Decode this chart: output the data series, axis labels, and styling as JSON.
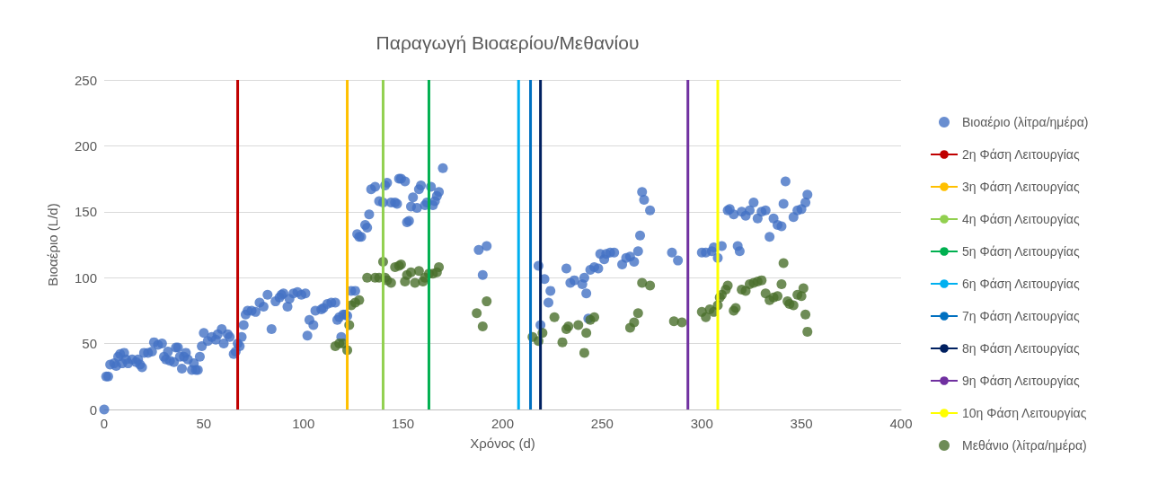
{
  "chart_data": {
    "type": "scatter",
    "title": "Παραγωγή Βιοαερίου/Μεθανίου",
    "xlabel": "Χρόνος (d)",
    "ylabel": "Βιοαέριο (L/d)",
    "xlim": [
      0,
      400
    ],
    "xticks": [
      0,
      50,
      100,
      150,
      200,
      250,
      300,
      350,
      400
    ],
    "ylim": [
      0,
      250
    ],
    "yticks": [
      0,
      50,
      100,
      150,
      200,
      250
    ],
    "grid": "y",
    "legend": "right",
    "marker": "circle",
    "series": [
      {
        "name": "Βιοαέριο (λίτρα/ημέρα)",
        "color": "#4472c4",
        "x": [
          0,
          1,
          2,
          3,
          5,
          6,
          7,
          8,
          9,
          10,
          11,
          12,
          14,
          16,
          17,
          18,
          19,
          20,
          22,
          24,
          25,
          27,
          29,
          30,
          31,
          32,
          33,
          35,
          36,
          37,
          38,
          39,
          40,
          41,
          42,
          44,
          45,
          46,
          47,
          48,
          49,
          50,
          52,
          54,
          56,
          57,
          59,
          60,
          62,
          63,
          65,
          66,
          67,
          68,
          69,
          70,
          71,
          72,
          74,
          76,
          78,
          80,
          82,
          84,
          86,
          88,
          89,
          90,
          92,
          93,
          95,
          97,
          99,
          101,
          102,
          103,
          105,
          106,
          109,
          110,
          112,
          114,
          116,
          117,
          118,
          119,
          120,
          121,
          122,
          124,
          126,
          127,
          128,
          129,
          131,
          132,
          133,
          134,
          136,
          138,
          140,
          141,
          142,
          144,
          146,
          147,
          148,
          149,
          151,
          152,
          153,
          154,
          155,
          157,
          158,
          159,
          161,
          162,
          164,
          165,
          166,
          167,
          168,
          170,
          188,
          190,
          192,
          218,
          219,
          221,
          223,
          224,
          232,
          234,
          236,
          240,
          241,
          242,
          243,
          244,
          246,
          248,
          249,
          251,
          252,
          254,
          256,
          260,
          262,
          264,
          266,
          268,
          269,
          270,
          271,
          274,
          285,
          288,
          300,
          302,
          305,
          306,
          308,
          310,
          313,
          314,
          316,
          318,
          319,
          320,
          322,
          324,
          326,
          328,
          330,
          332,
          334,
          336,
          338,
          340,
          341,
          342,
          346,
          348,
          350,
          352,
          353
        ],
        "values": [
          0,
          25,
          25,
          34,
          35,
          33,
          40,
          42,
          35,
          43,
          38,
          35,
          38,
          36,
          38,
          34,
          32,
          43,
          43,
          44,
          51,
          49,
          50,
          40,
          38,
          44,
          37,
          36,
          47,
          47,
          40,
          31,
          40,
          43,
          38,
          30,
          35,
          30,
          30,
          40,
          48,
          58,
          52,
          55,
          53,
          57,
          61,
          50,
          57,
          55,
          42,
          44,
          50,
          48,
          55,
          64,
          72,
          75,
          75,
          74,
          81,
          78,
          87,
          61,
          82,
          85,
          87,
          88,
          78,
          84,
          88,
          89,
          87,
          88,
          56,
          68,
          64,
          75,
          76,
          77,
          80,
          81,
          81,
          68,
          70,
          55,
          72,
          72,
          71,
          90,
          90,
          133,
          131,
          131,
          140,
          138,
          148,
          167,
          169,
          158,
          157,
          170,
          172,
          157,
          157,
          156,
          175,
          175,
          173,
          142,
          143,
          154,
          161,
          153,
          167,
          170,
          155,
          157,
          169,
          155,
          158,
          162,
          165,
          183,
          121,
          102,
          124,
          109,
          64,
          99,
          81,
          90,
          107,
          96,
          98,
          95,
          100,
          88,
          69,
          106,
          108,
          107,
          118,
          114,
          118,
          119,
          119,
          110,
          115,
          116,
          112,
          120,
          132,
          165,
          159,
          151,
          119,
          113,
          119,
          119,
          120,
          123,
          115,
          124,
          151,
          152,
          148,
          124,
          120,
          150,
          147,
          151,
          157,
          145,
          150,
          151,
          131,
          145,
          140,
          139,
          156,
          173,
          146,
          151,
          152,
          157,
          163
        ]
      },
      {
        "name": "2η Φάση Λειτουργίας",
        "type": "line",
        "marker": "none",
        "color": "#c00000",
        "x": [
          67,
          67
        ],
        "values": [
          0,
          250
        ]
      },
      {
        "name": "3η Φάση Λειτουργίας",
        "type": "line",
        "marker": "none",
        "color": "#ffc000",
        "x": [
          122,
          122
        ],
        "values": [
          0,
          250
        ]
      },
      {
        "name": "4η Φάση Λειτουργίας",
        "type": "line",
        "marker": "none",
        "color": "#92d050",
        "x": [
          140,
          140
        ],
        "values": [
          0,
          250
        ]
      },
      {
        "name": "5η Φάση Λειτουργίας",
        "type": "line",
        "marker": "none",
        "color": "#00b050",
        "x": [
          163,
          163
        ],
        "values": [
          0,
          250
        ]
      },
      {
        "name": "6η Φάση Λειτουργίας",
        "type": "line",
        "marker": "none",
        "color": "#00b0f0",
        "x": [
          208,
          208
        ],
        "values": [
          0,
          250
        ]
      },
      {
        "name": "7η Φάση Λειτουργίας",
        "type": "line",
        "marker": "none",
        "color": "#0070c0",
        "x": [
          214,
          214
        ],
        "values": [
          0,
          250
        ]
      },
      {
        "name": "8η Φάση Λειτουργίας",
        "type": "line",
        "marker": "none",
        "color": "#002060",
        "x": [
          219,
          219
        ],
        "values": [
          0,
          250
        ]
      },
      {
        "name": "9η Φάση Λειτουργίας",
        "type": "line",
        "marker": "none",
        "color": "#7030a0",
        "x": [
          293,
          293
        ],
        "values": [
          0,
          250
        ]
      },
      {
        "name": "10η Φάση Λειτουργίας",
        "type": "line",
        "marker": "none",
        "color": "#ffff00",
        "x": [
          308,
          308
        ],
        "values": [
          0,
          250
        ]
      },
      {
        "name": "Μεθάνιο (λίτρα/ημέρα)",
        "color": "#4a6f2c",
        "x": [
          116,
          118,
          120,
          122,
          123,
          124,
          126,
          128,
          132,
          136,
          138,
          140,
          141,
          142,
          144,
          146,
          148,
          149,
          151,
          152,
          154,
          156,
          158,
          160,
          161,
          163,
          165,
          167,
          168,
          187,
          190,
          192,
          215,
          218,
          220,
          226,
          230,
          232,
          233,
          238,
          241,
          242,
          244,
          246,
          264,
          266,
          268,
          270,
          274,
          286,
          290,
          300,
          302,
          304,
          306,
          308,
          309,
          310,
          312,
          313,
          316,
          317,
          320,
          322,
          324,
          326,
          328,
          330,
          332,
          334,
          336,
          338,
          340,
          341,
          343,
          344,
          346,
          348,
          350,
          351,
          352,
          353
        ],
        "values": [
          48,
          50,
          50,
          45,
          64,
          79,
          81,
          83,
          100,
          100,
          100,
          112,
          100,
          98,
          96,
          108,
          109,
          110,
          97,
          102,
          104,
          96,
          105,
          97,
          100,
          103,
          103,
          104,
          108,
          73,
          63,
          82,
          55,
          52,
          58,
          70,
          51,
          61,
          63,
          64,
          43,
          58,
          68,
          70,
          62,
          66,
          73,
          96,
          94,
          67,
          66,
          74,
          70,
          76,
          74,
          79,
          85,
          87,
          91,
          94,
          75,
          77,
          91,
          90,
          95,
          96,
          97,
          98,
          88,
          83,
          85,
          86,
          95,
          111,
          82,
          80,
          79,
          87,
          86,
          92,
          72,
          59
        ]
      }
    ]
  }
}
